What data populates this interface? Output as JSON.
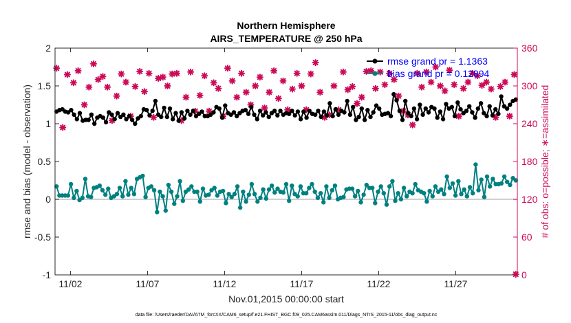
{
  "chart_data": {
    "type": "line",
    "title": [
      "Northern Hemisphere",
      "AIRS_TEMPERATURE @ 250 hPa"
    ],
    "xlabel": "Nov.01,2015 00:00:00 start",
    "ylabel": "rmse and bias (model - observation)",
    "ylabel_right": "# of obs: o=possible; ∗=assimilated",
    "ylim": [
      -1,
      2
    ],
    "ylim_right": [
      0,
      360
    ],
    "xlim": [
      0.5,
      30.5
    ],
    "x_ticks": [
      1.5,
      6.5,
      11.5,
      16.5,
      21.5,
      26.5
    ],
    "x_tick_labels": [
      "11/02",
      "11/07",
      "11/12",
      "11/17",
      "11/22",
      "11/27"
    ],
    "y_tick_labels": [
      "-1",
      "-0.5",
      "0",
      "0.5",
      "1",
      "1.5",
      "2"
    ],
    "y_ticks": [
      -1,
      -0.5,
      0,
      0.5,
      1,
      1.5,
      2
    ],
    "y_right_ticks": [
      0,
      60,
      120,
      180,
      240,
      300,
      360
    ],
    "y_right_tick_labels": [
      "0",
      "60",
      "120",
      "180",
      "240",
      "300",
      "360"
    ],
    "legend": [
      "rmse grand pr = 1.1363",
      "bias grand pr = 0.12894"
    ],
    "legend_position": "top-right",
    "footnote": "data file: /Users/raeder/DAI/ATM_forcXX/CAM6_setup/f.e21.FHIST_BGC.f09_025.CAM6assim.011/Diags_NTrS_2015-11/obs_diag_output.nc",
    "colors": {
      "rmse": "#000000",
      "bias": "#008080",
      "obs": "#cc0a57",
      "zero_line": "#bfbfbf"
    },
    "series": [
      {
        "name": "rmse",
        "values": [
          1.16,
          1.18,
          1.19,
          1.16,
          1.15,
          1.18,
          1.12,
          1.06,
          1.14,
          1.04,
          1.05,
          1.05,
          1.12,
          1.0,
          1.08,
          1.1,
          1.08,
          1.02,
          1.15,
          1.12,
          1.06,
          1.14,
          1.09,
          1.12,
          1.06,
          1.1,
          1.05,
          1.0,
          1.07,
          1.1,
          1.19,
          1.18,
          1.11,
          1.17,
          1.3,
          1.12,
          1.09,
          1.21,
          1.09,
          1.2,
          1.06,
          1.14,
          1.04,
          1.15,
          1.07,
          1.17,
          1.12,
          1.17,
          1.1,
          1.13,
          1.16,
          1.1,
          1.1,
          1.12,
          1.15,
          1.22,
          1.2,
          1.08,
          1.24,
          1.14,
          1.12,
          1.15,
          1.1,
          1.14,
          1.17,
          1.18,
          1.13,
          1.22,
          1.12,
          1.06,
          1.17,
          1.11,
          1.15,
          1.09,
          1.14,
          1.17,
          1.11,
          1.17,
          1.12,
          1.14,
          1.13,
          1.17,
          1.11,
          1.16,
          1.06,
          1.16,
          1.08,
          1.17,
          1.13,
          1.12,
          1.17,
          1.09,
          1.16,
          1.11,
          1.27,
          1.1,
          1.19,
          1.12,
          1.17,
          1.15,
          1.3,
          1.12,
          1.22,
          1.05,
          1.09,
          1.2,
          1.05,
          1.18,
          1.09,
          1.15,
          1.24,
          1.2,
          1.12,
          1.13,
          1.14,
          1.1,
          1.39,
          1.31,
          1.17,
          1.05,
          1.3,
          1.14,
          1.1,
          1.2,
          1.06,
          1.25,
          1.12,
          1.2,
          1.15,
          1.22,
          1.2,
          1.08,
          1.16,
          1.06,
          1.26,
          1.2,
          1.22,
          1.1,
          1.28,
          1.19,
          1.14,
          1.17,
          1.23,
          1.15,
          1.08,
          1.2,
          1.27,
          1.14,
          1.1,
          1.23,
          1.11,
          1.19,
          1.13,
          1.36,
          1.23,
          1.2,
          1.25,
          1.3,
          1.32
        ]
      },
      {
        "name": "bias",
        "values": [
          0.17,
          0.05,
          0.05,
          0.05,
          0.05,
          0.2,
          0.02,
          0.11,
          -0.01,
          0.02,
          0.27,
          0.04,
          0.03,
          0.15,
          0.16,
          0.18,
          0.12,
          0.06,
          0.14,
          0.02,
          0.04,
          0.07,
          0.15,
          0.04,
          0.24,
          0.06,
          0.15,
          0.07,
          0.27,
          0.29,
          0.31,
          0.03,
          0.15,
          0.17,
          0.12,
          -0.17,
          0.1,
          0.04,
          -0.15,
          0.19,
          0.1,
          -0.06,
          0.04,
          0.24,
          -0.02,
          0.1,
          0.13,
          0.17,
          0.1,
          0.1,
          -0.03,
          0.14,
          0.05,
          0.06,
          0.12,
          0.15,
          0.05,
          0.1,
          0.11,
          -0.05,
          0.07,
          0.03,
          0.07,
          0.17,
          -0.11,
          0.1,
          -0.03,
          0.06,
          0.2,
          0.07,
          -0.03,
          0.02,
          0.13,
          0.01,
          0.13,
          0.18,
          0.09,
          0.14,
          0.1,
          0.09,
          0.2,
          -0.02,
          0.18,
          0.07,
          0.04,
          0.17,
          0.08,
          0.08,
          0.15,
          0.2,
          0.1,
          0.02,
          0.08,
          -0.04,
          0.17,
          0.02,
          0.12,
          0.18,
          0.0,
          0.02,
          0.03,
          0.13,
          0.14,
          0.14,
          0.04,
          0.11,
          -0.04,
          0.06,
          0.19,
          0.15,
          0.15,
          -0.05,
          0.1,
          0.17,
          0.08,
          -0.07,
          0.17,
          0.24,
          -0.02,
          0.08,
          0.0,
          0.15,
          0.04,
          0.1,
          0.08,
          0.2,
          0.12,
          0.1,
          0.08,
          -0.03,
          0.11,
          0.04,
          0.17,
          0.1,
          0.13,
          0.07,
          0.3,
          0.15,
          0.21,
          0.05,
          0.24,
          0.07,
          0.13,
          0.04,
          0.16,
          0.08,
          0.46,
          0.12,
          0.26,
          0.03,
          0.3,
          0.17,
          0.27,
          0.2,
          0.2,
          0.21,
          0.3,
          0.23,
          0.19,
          0.28,
          0.25
        ]
      },
      {
        "name": "obs_assimilated",
        "x": [
          0.6,
          1.0,
          1.3,
          1.7,
          2.0,
          2.4,
          2.7,
          3.0,
          3.3,
          3.6,
          3.9,
          4.2,
          4.5,
          4.8,
          5.1,
          5.4,
          5.7,
          6.0,
          6.3,
          6.6,
          6.9,
          7.2,
          7.5,
          7.8,
          8.1,
          8.4,
          8.7,
          9.0,
          9.3,
          9.6,
          9.9,
          10.2,
          10.5,
          10.8,
          11.1,
          11.4,
          11.7,
          12.0,
          12.3,
          12.6,
          12.9,
          13.2,
          13.5,
          13.8,
          14.1,
          14.4,
          14.7,
          15.0,
          15.3,
          15.6,
          15.9,
          16.2,
          16.5,
          16.8,
          17.1,
          17.4,
          17.7,
          18.0,
          18.3,
          18.6,
          18.9,
          19.2,
          19.5,
          19.8,
          20.1,
          20.4,
          20.7,
          21.0,
          21.3,
          21.6,
          21.9,
          22.2,
          22.5,
          22.8,
          23.1,
          23.4,
          23.7,
          24.0,
          24.3,
          24.6,
          24.9,
          25.2,
          25.5,
          25.8,
          26.1,
          26.4,
          26.7,
          27.0,
          27.3,
          27.6,
          27.9,
          28.2,
          28.5,
          28.8,
          29.1,
          29.4,
          29.7,
          30.0,
          30.3,
          30.4
        ],
        "values": [
          328,
          234,
          318,
          305,
          324,
          270,
          298,
          335,
          310,
          315,
          298,
          245,
          284,
          319,
          306,
          252,
          299,
          323,
          291,
          320,
          250,
          312,
          314,
          300,
          319,
          320,
          245,
          282,
          322,
          260,
          285,
          316,
          260,
          305,
          296,
          252,
          328,
          308,
          282,
          320,
          290,
          270,
          300,
          314,
          265,
          290,
          324,
          280,
          308,
          262,
          295,
          320,
          300,
          262,
          319,
          337,
          290,
          250,
          254,
          300,
          262,
          322,
          294,
          299,
          272,
          282,
          323,
          324,
          296,
          322,
          302,
          320,
          310,
          284,
          260,
          254,
          238,
          320,
          298,
          322,
          306,
          330,
          300,
          292,
          325,
          302,
          252,
          296,
          306,
          320,
          316,
          301,
          306,
          295,
          250,
          299,
          306,
          252,
          318,
          1
        ]
      }
    ]
  }
}
